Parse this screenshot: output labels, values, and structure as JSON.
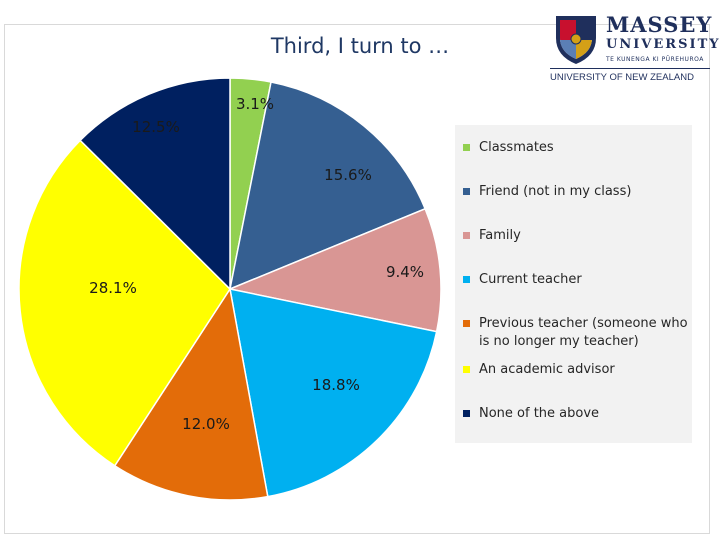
{
  "slide": {
    "title": "Third, I turn to …"
  },
  "logo": {
    "name": "MASSEY",
    "name2": "UNIVERSITY",
    "maori": "TE KUNENGA KI PŪREHUROA",
    "tagline": "UNIVERSITY OF NEW ZEALAND",
    "colors": {
      "navy": "#1f2f5c",
      "red": "#c8102e",
      "gold": "#d4a017"
    }
  },
  "chart_data": {
    "type": "pie",
    "title": "",
    "slices": [
      {
        "name": "Classmates",
        "value": 3.1,
        "label": "3.1%",
        "color": "#92d050"
      },
      {
        "name": "Friend (not in my class)",
        "value": 15.6,
        "label": "15.6%",
        "color": "#355f91"
      },
      {
        "name": "Family",
        "value": 9.4,
        "label": "9.4%",
        "color": "#d99694"
      },
      {
        "name": "Current teacher",
        "value": 18.8,
        "label": "18.8%",
        "color": "#00b0f0"
      },
      {
        "name": "Previous teacher (someone who is no longer my teacher)",
        "value": 12.0,
        "label": "12.0%",
        "color": "#e36c09"
      },
      {
        "name": "An academic advisor",
        "value": 28.1,
        "label": "28.1%",
        "color": "#ffff00"
      },
      {
        "name": "None of the above",
        "value": 12.5,
        "label": "12.5%",
        "color": "#002060"
      }
    ],
    "legend_position": "right",
    "start_angle_deg": 0,
    "direction": "clockwise"
  }
}
